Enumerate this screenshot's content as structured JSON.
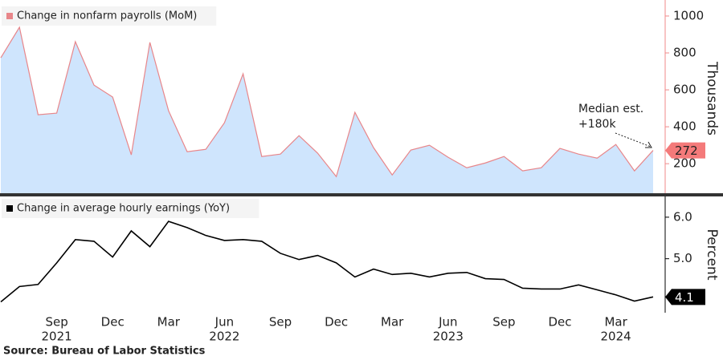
{
  "chart_data": [
    {
      "type": "area",
      "categories": [
        null,
        null,
        null,
        null,
        null,
        null,
        null,
        null,
        null,
        null,
        null,
        null,
        null,
        null,
        null,
        null,
        null,
        null,
        null,
        null,
        null,
        null,
        null,
        null,
        null,
        null,
        null,
        null,
        null,
        null,
        null,
        null,
        null,
        null,
        null,
        null
      ],
      "series": [
        {
          "name": "Change in nonfarm payrolls (MoM)",
          "color": "#e8868a",
          "fill_color": "#cfe5fd",
          "values": [
            774,
            939,
            465,
            474,
            861,
            626,
            561,
            248,
            857,
            487,
            265,
            278,
            422,
            687,
            239,
            252,
            352,
            257,
            130,
            478,
            287,
            139,
            274,
            300,
            235,
            178,
            204,
            239,
            161,
            178,
            283,
            252,
            230,
            304,
            161,
            272
          ],
          "value_labels": [
            null,
            null,
            null,
            null,
            null,
            null,
            null,
            null,
            null,
            null,
            null,
            null,
            null,
            null,
            null,
            null,
            null,
            null,
            null,
            null,
            null,
            null,
            null,
            null,
            null,
            null,
            null,
            null,
            null,
            null,
            null,
            null,
            null,
            null,
            null,
            "272"
          ]
        }
      ],
      "axis_color": "#f08a8a",
      "ylabel": "Thousands",
      "ylim": [
        40,
        1065
      ],
      "yticks": [
        200,
        400,
        600,
        800,
        1000
      ],
      "annotation": [
        "Median est.",
        "+180k"
      ]
    },
    {
      "type": "line",
      "categories": [
        null,
        null,
        null,
        "Sep",
        null,
        null,
        "Dec",
        null,
        null,
        "Mar",
        null,
        null,
        "Jun",
        null,
        null,
        "Sep",
        null,
        null,
        "Dec",
        null,
        null,
        "Mar",
        null,
        null,
        "Jun",
        null,
        null,
        "Sep",
        null,
        null,
        "Dec",
        null,
        null,
        "Mar",
        null,
        null
      ],
      "years": [
        null,
        null,
        null,
        "2021",
        null,
        null,
        null,
        null,
        null,
        null,
        null,
        null,
        "2022",
        null,
        null,
        null,
        null,
        null,
        null,
        null,
        null,
        null,
        null,
        null,
        "2023",
        null,
        null,
        null,
        null,
        null,
        null,
        null,
        null,
        "2024",
        null,
        null
      ],
      "series": [
        {
          "name": "Change in average hourly earnings (YoY)",
          "color": "#000000",
          "values": [
            3.96,
            4.33,
            4.38,
            4.9,
            5.46,
            5.42,
            5.04,
            5.67,
            5.29,
            5.9,
            5.75,
            5.56,
            5.44,
            5.46,
            5.42,
            5.13,
            4.98,
            5.08,
            4.9,
            4.56,
            4.75,
            4.62,
            4.65,
            4.56,
            4.65,
            4.67,
            4.52,
            4.5,
            4.29,
            4.27,
            4.27,
            4.37,
            4.25,
            4.13,
            3.98,
            4.08
          ],
          "value_labels": [
            null,
            null,
            null,
            null,
            null,
            null,
            null,
            null,
            null,
            null,
            null,
            null,
            null,
            null,
            null,
            null,
            null,
            null,
            null,
            null,
            null,
            null,
            null,
            null,
            null,
            null,
            null,
            null,
            null,
            null,
            null,
            null,
            null,
            null,
            null,
            "4.1"
          ]
        }
      ],
      "axis_color": "#000000",
      "ylabel": "Percent",
      "ylim": [
        3.7,
        6.5
      ],
      "yticks": [
        {
          "value": 5,
          "label": "5.0"
        },
        {
          "value": 6,
          "label": "6.0"
        }
      ]
    }
  ],
  "source": "Source: Bureau of Labor Statistics"
}
